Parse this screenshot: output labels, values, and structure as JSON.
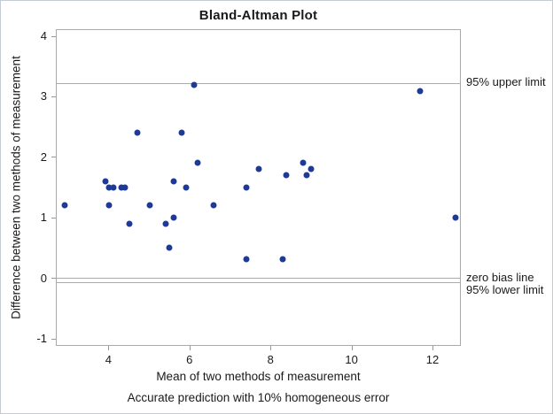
{
  "colors": {
    "point": "#1e3a96",
    "frame": "#a9a9a9",
    "reference_line": "#ababab",
    "tick": "#9a9a9a",
    "text": "#1a1a1a"
  },
  "chart_data": {
    "type": "scatter",
    "title": "Bland-Altman Plot",
    "xlabel": "Mean of two methods of measurement",
    "ylabel": "Difference between two methods of measurement",
    "footnote": "Accurate prediction with 10% homogeneous error",
    "xlim": [
      2.7,
      12.7
    ],
    "ylim": [
      -1.12,
      4.11
    ],
    "x_ticks": [
      4,
      6,
      8,
      10,
      12
    ],
    "y_ticks": [
      4,
      3,
      2,
      1,
      0,
      -1
    ],
    "grid": false,
    "legend": "none",
    "points": [
      [
        2.9,
        1.2
      ],
      [
        3.9,
        1.6
      ],
      [
        4.0,
        1.5
      ],
      [
        4.0,
        1.2
      ],
      [
        4.1,
        1.5
      ],
      [
        4.3,
        1.5
      ],
      [
        4.4,
        1.5
      ],
      [
        4.5,
        0.9
      ],
      [
        4.7,
        2.4
      ],
      [
        5.0,
        1.2
      ],
      [
        5.4,
        0.9
      ],
      [
        5.5,
        0.5
      ],
      [
        5.6,
        1.6
      ],
      [
        5.6,
        1.0
      ],
      [
        5.8,
        2.4
      ],
      [
        5.9,
        1.5
      ],
      [
        6.1,
        3.2
      ],
      [
        6.2,
        1.9
      ],
      [
        6.6,
        1.2
      ],
      [
        7.4,
        1.5
      ],
      [
        7.4,
        0.3
      ],
      [
        7.7,
        1.8
      ],
      [
        8.3,
        0.3
      ],
      [
        8.4,
        1.7
      ],
      [
        8.8,
        1.9
      ],
      [
        8.9,
        1.7
      ],
      [
        9.0,
        1.8
      ],
      [
        11.7,
        3.1
      ],
      [
        12.6,
        1.0
      ]
    ],
    "reference_lines": [
      {
        "y": 3.23,
        "label": "95% upper limit"
      },
      {
        "y": 0,
        "label": "zero bias line"
      },
      {
        "y": -0.07,
        "label": "95% lower limit"
      }
    ]
  }
}
